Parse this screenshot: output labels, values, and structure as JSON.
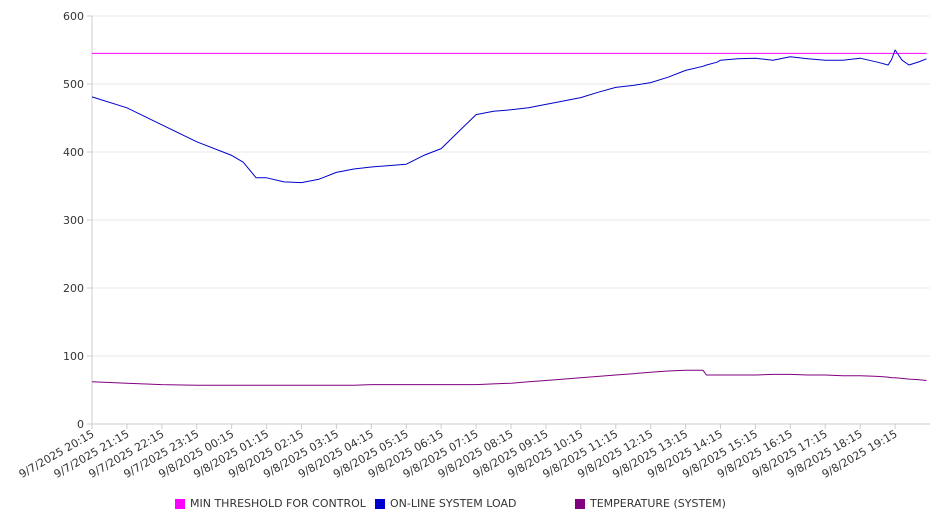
{
  "chart_data": {
    "type": "line",
    "title": "",
    "xlabel": "",
    "ylabel": "",
    "ylim": [
      0,
      600
    ],
    "yticks": [
      0,
      100,
      200,
      300,
      400,
      500,
      600
    ],
    "grid": true,
    "legend_position": "bottom",
    "x_tick_labels": [
      "9/7/2025 20:15",
      "9/7/2025 21:15",
      "9/7/2025 22:15",
      "9/7/2025 23:15",
      "9/8/2025 00:15",
      "9/8/2025 01:15",
      "9/8/2025 02:15",
      "9/8/2025 03:15",
      "9/8/2025 04:15",
      "9/8/2025 05:15",
      "9/8/2025 06:15",
      "9/8/2025 07:15",
      "9/8/2025 08:15",
      "9/8/2025 09:15",
      "9/8/2025 10:15",
      "9/8/2025 11:15",
      "9/8/2025 12:15",
      "9/8/2025 13:15",
      "9/8/2025 14:15",
      "9/8/2025 15:15",
      "9/8/2025 16:15",
      "9/8/2025 17:15",
      "9/8/2025 18:15",
      "9/8/2025 19:15"
    ],
    "x_hours": [
      0,
      1,
      2,
      3,
      4,
      4.33,
      4.7,
      5,
      5.5,
      6,
      6.5,
      7,
      7.5,
      8,
      8.5,
      9,
      9.5,
      10,
      10.5,
      11,
      11.5,
      12,
      12.5,
      13,
      13.5,
      14,
      14.5,
      15,
      15.5,
      16,
      16.5,
      17,
      17.5,
      17.6,
      17.9,
      18,
      18.5,
      19,
      19.5,
      20,
      20.5,
      21,
      21.5,
      22,
      22.5,
      22.8,
      22.9,
      23,
      23.2,
      23.4,
      23.7,
      23.9
    ],
    "series": [
      {
        "name": "MIN THRESHOLD FOR CONTROL",
        "color": "#ff00ff",
        "values": [
          545,
          545,
          545,
          545,
          545,
          545,
          545,
          545,
          545,
          545,
          545,
          545,
          545,
          545,
          545,
          545,
          545,
          545,
          545,
          545,
          545,
          545,
          545,
          545,
          545,
          545,
          545,
          545,
          545,
          545,
          545,
          545,
          545,
          545,
          545,
          545,
          545,
          545,
          545,
          545,
          545,
          545,
          545,
          545,
          545,
          545,
          545,
          545,
          545,
          545,
          545,
          545
        ]
      },
      {
        "name": "ON-LINE SYSTEM LOAD",
        "color": "#0000cc",
        "values": [
          481,
          465,
          440,
          415,
          395,
          385,
          362,
          362,
          356,
          355,
          360,
          370,
          375,
          378,
          380,
          382,
          395,
          405,
          430,
          455,
          460,
          462,
          465,
          470,
          475,
          480,
          488,
          495,
          498,
          502,
          510,
          520,
          526,
          528,
          532,
          535,
          537,
          538,
          535,
          540,
          537,
          535,
          535,
          538,
          532,
          528,
          536,
          550,
          535,
          528,
          533,
          537
        ]
      },
      {
        "name": "TEMPERATURE (SYSTEM)",
        "color": "#800080",
        "values": [
          62,
          60,
          58,
          57,
          57,
          57,
          57,
          57,
          57,
          57,
          57,
          57,
          57,
          58,
          58,
          58,
          58,
          58,
          58,
          58,
          59,
          60,
          62,
          64,
          66,
          68,
          70,
          72,
          74,
          76,
          78,
          79,
          79,
          72,
          72,
          72,
          72,
          72,
          73,
          73,
          72,
          72,
          71,
          71,
          70,
          69,
          68,
          68,
          67,
          66,
          65,
          64
        ]
      }
    ]
  }
}
